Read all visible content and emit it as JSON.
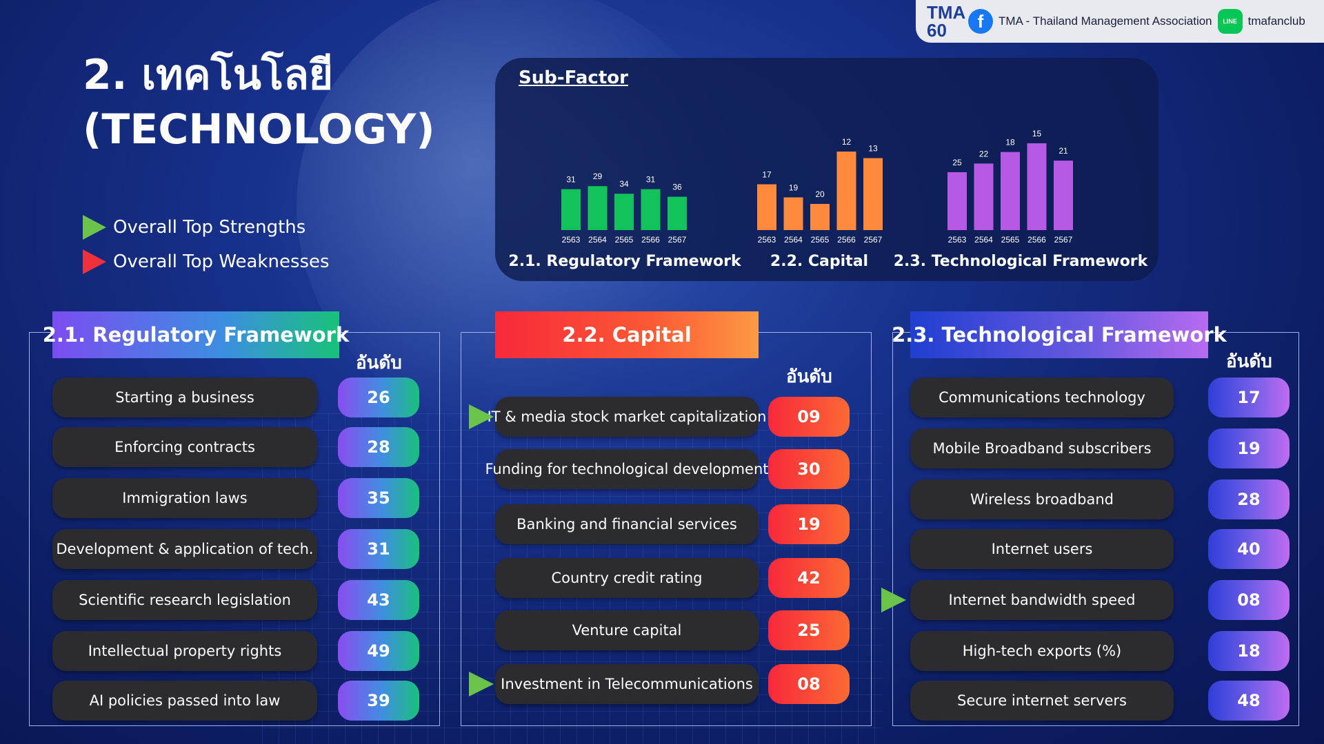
{
  "brand": {
    "logo": "TMA 60",
    "facebook_label": "TMA - Thailand Management Association",
    "line_label": "tmafanclub",
    "line_icon_text": "LINE"
  },
  "title": {
    "line1": "2. เทคโนโลยี",
    "line2": "(TECHNOLOGY)"
  },
  "legend": {
    "strengths": "Overall Top Strengths",
    "weaknesses": "Overall Top Weaknesses",
    "strength_color": "#6ac44a",
    "weakness_color": "#f0303a"
  },
  "subfactor": {
    "title": "Sub-Factor"
  },
  "chart_data": [
    {
      "type": "bar",
      "title": "2.1. Regulatory Framework",
      "categories": [
        "2563",
        "2564",
        "2565",
        "2566",
        "2567"
      ],
      "values": [
        31,
        29,
        34,
        31,
        36
      ],
      "color": "#12c25a",
      "note": "rank; lower is better"
    },
    {
      "type": "bar",
      "title": "2.2. Capital",
      "categories": [
        "2563",
        "2564",
        "2565",
        "2566",
        "2567"
      ],
      "values": [
        17,
        19,
        20,
        12,
        13
      ],
      "color": "#ff8a3d"
    },
    {
      "type": "bar",
      "title": "2.3. Technological Framework",
      "categories": [
        "2563",
        "2564",
        "2565",
        "2566",
        "2567"
      ],
      "values": [
        25,
        22,
        18,
        15,
        21
      ],
      "color": "#b65ae6"
    }
  ],
  "sections": [
    {
      "title": "2.1. Regulatory Framework",
      "rank_label": "อันดับ",
      "items": [
        {
          "label": "Starting a business",
          "rank": "26",
          "mark": ""
        },
        {
          "label": "Enforcing contracts",
          "rank": "28",
          "mark": ""
        },
        {
          "label": "Immigration laws",
          "rank": "35",
          "mark": ""
        },
        {
          "label": "Development & application of tech.",
          "rank": "31",
          "mark": ""
        },
        {
          "label": "Scientific research legislation",
          "rank": "43",
          "mark": ""
        },
        {
          "label": "Intellectual property rights",
          "rank": "49",
          "mark": ""
        },
        {
          "label": "AI policies passed into law",
          "rank": "39",
          "mark": ""
        }
      ]
    },
    {
      "title": "2.2. Capital",
      "rank_label": "อันดับ",
      "items": [
        {
          "label": "IT & media stock market capitalization",
          "rank": "09",
          "mark": "strength"
        },
        {
          "label": "Funding for technological development",
          "rank": "30",
          "mark": ""
        },
        {
          "label": "Banking and financial services",
          "rank": "19",
          "mark": ""
        },
        {
          "label": "Country credit rating",
          "rank": "42",
          "mark": ""
        },
        {
          "label": "Venture capital",
          "rank": "25",
          "mark": ""
        },
        {
          "label": "Investment in Telecommunications",
          "rank": "08",
          "mark": "strength"
        }
      ]
    },
    {
      "title": "2.3. Technological Framework",
      "rank_label": "อันดับ",
      "items": [
        {
          "label": "Communications technology",
          "rank": "17",
          "mark": ""
        },
        {
          "label": "Mobile Broadband subscribers",
          "rank": "19",
          "mark": ""
        },
        {
          "label": "Wireless broadband",
          "rank": "28",
          "mark": ""
        },
        {
          "label": "Internet users",
          "rank": "40",
          "mark": ""
        },
        {
          "label": "Internet bandwidth speed",
          "rank": "08",
          "mark": "strength"
        },
        {
          "label": "High-tech exports (%)",
          "rank": "18",
          "mark": ""
        },
        {
          "label": "Secure internet servers",
          "rank": "48",
          "mark": ""
        }
      ]
    }
  ]
}
